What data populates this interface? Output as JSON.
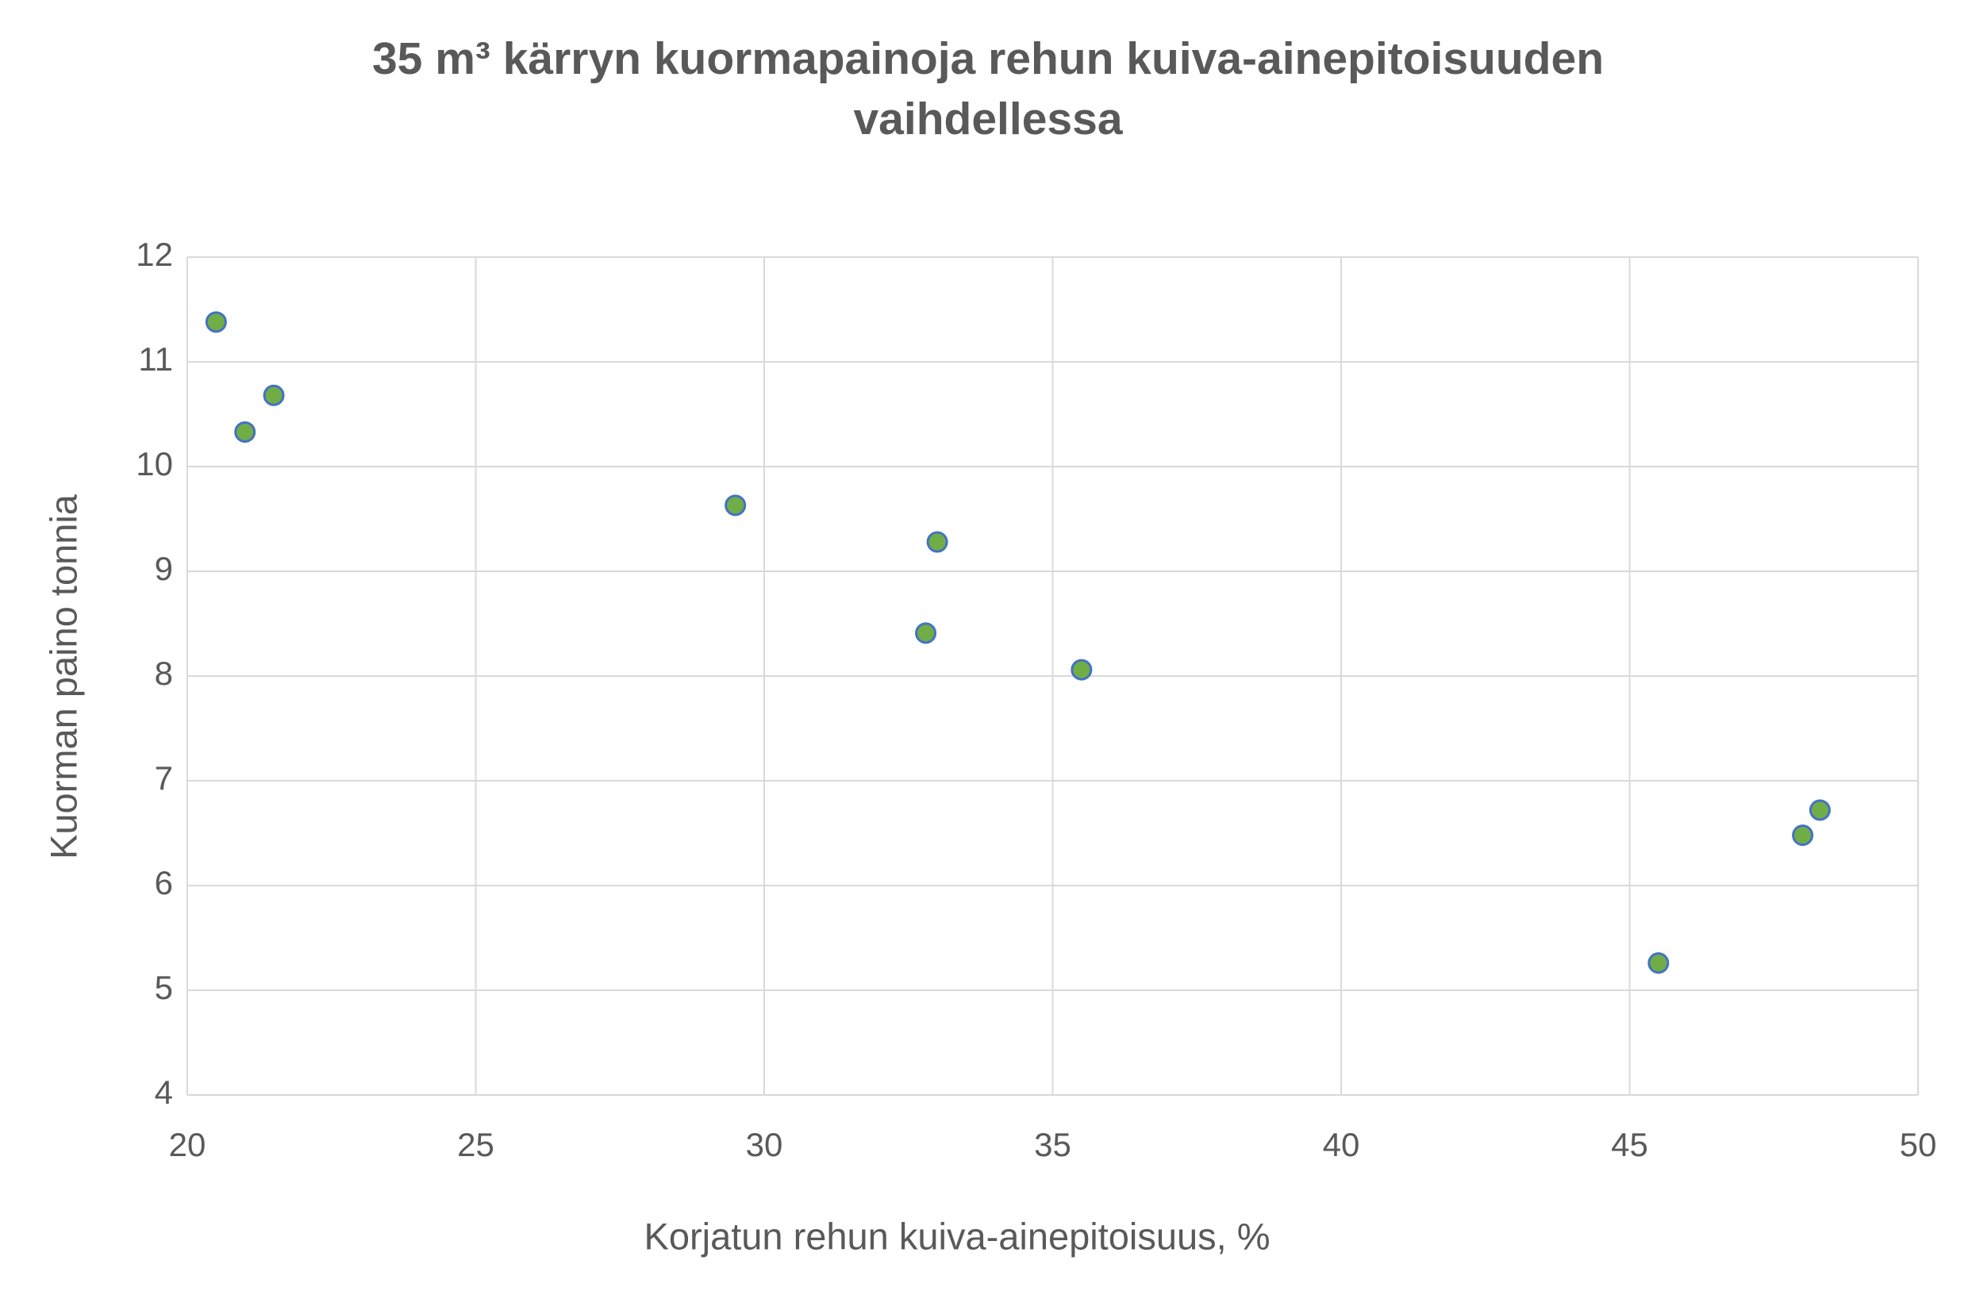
{
  "chart_data": {
    "type": "scatter",
    "title": "35 m³ kärryn kuormapainoja rehun kuiva-ainepitoisuuden vaihdellessa",
    "x_label": "Korjatun rehun kuiva-ainepitoisuus, %",
    "y_label": "Kuorman paino tonnia",
    "x": [
      20.5,
      21,
      21.5,
      29.5,
      33,
      32.8,
      35.5,
      45.5,
      48,
      48.3
    ],
    "values": [
      11.38,
      10.33,
      10.68,
      9.63,
      9.28,
      8.41,
      8.06,
      5.26,
      6.48,
      6.72
    ],
    "color": "#70ad47",
    "edge_color": "#4472c4",
    "xlim": [
      20,
      50
    ],
    "xticks": [
      20,
      25,
      30,
      35,
      40,
      45,
      50
    ],
    "ylim": [
      4,
      12
    ],
    "yticks": [
      4,
      5,
      6,
      7,
      8,
      9,
      10,
      11,
      12
    ],
    "grid": true
  }
}
